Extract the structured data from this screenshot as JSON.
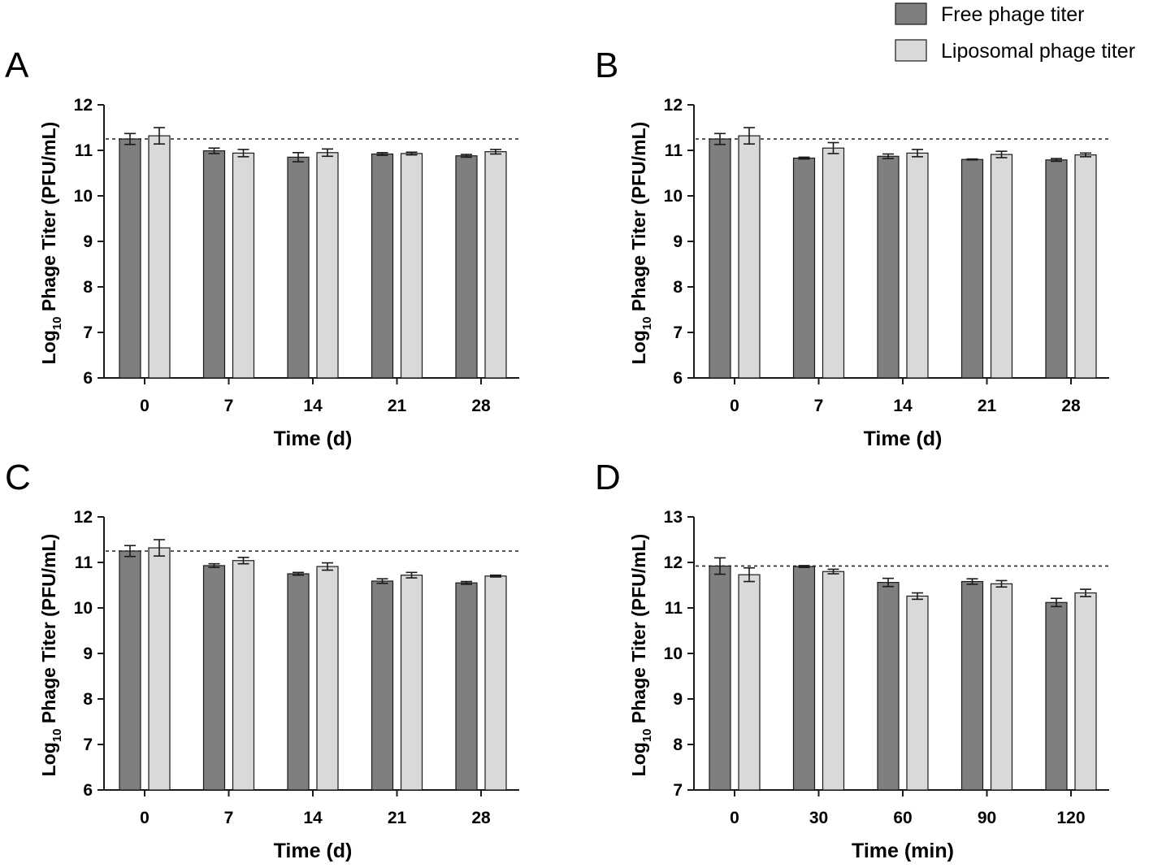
{
  "legend": {
    "items": [
      {
        "label": "Free phage titer",
        "color": "#7f7f7f"
      },
      {
        "label": "Liposomal phage titer",
        "color": "#d9d9d9"
      }
    ]
  },
  "colors": {
    "free": "#7f7f7f",
    "liposomal": "#d9d9d9",
    "stroke": "#1a1a1a"
  },
  "chart_data": [
    {
      "panel": "A",
      "type": "bar",
      "categories": [
        "0",
        "7",
        "14",
        "21",
        "28"
      ],
      "series": [
        {
          "name": "Free phage titer",
          "values": [
            11.25,
            10.99,
            10.85,
            10.92,
            10.88
          ],
          "errors": [
            0.12,
            0.06,
            0.1,
            0.03,
            0.03
          ]
        },
        {
          "name": "Liposomal phage titer",
          "values": [
            11.32,
            10.94,
            10.95,
            10.93,
            10.97
          ],
          "errors": [
            0.18,
            0.08,
            0.08,
            0.03,
            0.05
          ]
        }
      ],
      "reference_line": 11.25,
      "xlabel": "Time (d)",
      "ylabel_prefix": "Log",
      "ylabel_sub": "10",
      "ylabel_suffix": " Phage Titer (PFU/mL)",
      "ylim": [
        6,
        12
      ],
      "yticks": [
        "6",
        "7",
        "8",
        "9",
        "10",
        "11",
        "12"
      ]
    },
    {
      "panel": "B",
      "type": "bar",
      "categories": [
        "0",
        "7",
        "14",
        "21",
        "28"
      ],
      "series": [
        {
          "name": "Free phage titer",
          "values": [
            11.25,
            10.83,
            10.87,
            10.8,
            10.79
          ],
          "errors": [
            0.12,
            0.02,
            0.05,
            0.01,
            0.03
          ]
        },
        {
          "name": "Liposomal phage titer",
          "values": [
            11.32,
            11.05,
            10.94,
            10.91,
            10.9
          ],
          "errors": [
            0.18,
            0.12,
            0.08,
            0.07,
            0.04
          ]
        }
      ],
      "reference_line": 11.25,
      "xlabel": "Time (d)",
      "ylabel_prefix": "Log",
      "ylabel_sub": "10",
      "ylabel_suffix": " Phage Titer (PFU/mL)",
      "ylim": [
        6,
        12
      ],
      "yticks": [
        "6",
        "7",
        "8",
        "9",
        "10",
        "11",
        "12"
      ]
    },
    {
      "panel": "C",
      "type": "bar",
      "categories": [
        "0",
        "7",
        "14",
        "21",
        "28"
      ],
      "series": [
        {
          "name": "Free phage titer",
          "values": [
            11.25,
            10.93,
            10.75,
            10.59,
            10.55
          ],
          "errors": [
            0.12,
            0.04,
            0.03,
            0.05,
            0.03
          ]
        },
        {
          "name": "Liposomal phage titer",
          "values": [
            11.32,
            11.04,
            10.91,
            10.72,
            10.7
          ],
          "errors": [
            0.18,
            0.07,
            0.08,
            0.06,
            0.02
          ]
        }
      ],
      "reference_line": 11.25,
      "xlabel": "Time (d)",
      "ylabel_prefix": "Log",
      "ylabel_sub": "10",
      "ylabel_suffix": " Phage Titer (PFU/mL)",
      "ylim": [
        6,
        12
      ],
      "yticks": [
        "6",
        "7",
        "8",
        "9",
        "10",
        "11",
        "12"
      ]
    },
    {
      "panel": "D",
      "type": "bar",
      "categories": [
        "0",
        "30",
        "60",
        "90",
        "120"
      ],
      "series": [
        {
          "name": "Free phage titer",
          "values": [
            11.92,
            11.91,
            11.56,
            11.58,
            11.12
          ],
          "errors": [
            0.18,
            0.02,
            0.09,
            0.06,
            0.09
          ]
        },
        {
          "name": "Liposomal phage titer",
          "values": [
            11.73,
            11.8,
            11.26,
            11.53,
            11.33
          ],
          "errors": [
            0.15,
            0.05,
            0.07,
            0.07,
            0.08
          ]
        }
      ],
      "reference_line": 11.92,
      "xlabel": "Time (min)",
      "ylabel_prefix": "Log",
      "ylabel_sub": "10",
      "ylabel_suffix": " Phage Titer (PFU/mL)",
      "ylim": [
        7,
        13
      ],
      "yticks": [
        "7",
        "8",
        "9",
        "10",
        "11",
        "12",
        "13"
      ]
    }
  ]
}
